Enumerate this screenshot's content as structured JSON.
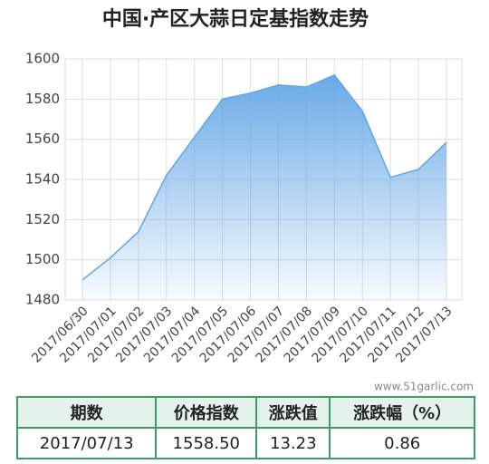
{
  "chart_data": {
    "type": "area",
    "title": "中国·产区大蒜日定基指数走势",
    "categories": [
      "2017/06/30",
      "2017/07/01",
      "2017/07/02",
      "2017/07/03",
      "2017/07/04",
      "2017/07/05",
      "2017/07/06",
      "2017/07/07",
      "2017/07/08",
      "2017/07/09",
      "2017/07/10",
      "2017/07/11",
      "2017/07/12",
      "2017/07/13"
    ],
    "series": [
      {
        "name": "大蒜日定基指数",
        "color": "#62a6e6",
        "values": [
          1490,
          1501,
          1514,
          1542,
          1561,
          1580,
          1583,
          1587,
          1586,
          1592,
          1574,
          1541,
          1545,
          1558.5
        ]
      }
    ],
    "ylim": [
      1480,
      1600
    ],
    "yticks": [
      1480,
      1500,
      1520,
      1540,
      1560,
      1580,
      1600
    ],
    "grid": true,
    "watermark": "www.51garlic.com"
  },
  "table": {
    "header": [
      "期数",
      "价格指数",
      "涨跌值",
      "涨跌幅（%）"
    ],
    "rows": [
      [
        "2017/07/13",
        "1558.50",
        "13.23",
        "0.86"
      ]
    ]
  }
}
